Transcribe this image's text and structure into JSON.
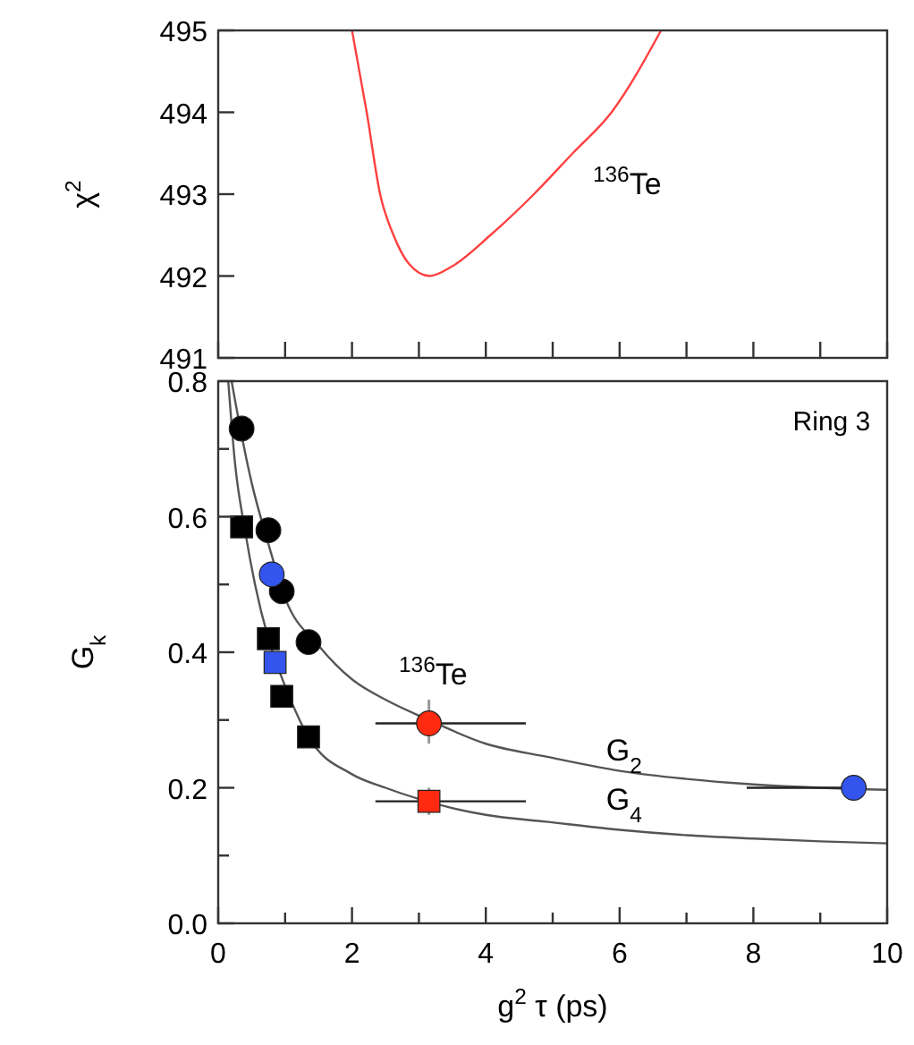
{
  "chart_data": [
    {
      "type": "line",
      "ylabel": "χ$^{2}$",
      "xlim": [
        0,
        10
      ],
      "ylim": [
        491,
        495
      ],
      "xticks": [
        {
          "value": 0,
          "label": null
        },
        {
          "value": 1,
          "label": null
        },
        {
          "value": 2,
          "label": null
        },
        {
          "value": 3,
          "label": null
        },
        {
          "value": 4,
          "label": null
        },
        {
          "value": 5,
          "label": null
        },
        {
          "value": 6,
          "label": null
        },
        {
          "value": 7,
          "label": null
        },
        {
          "value": 8,
          "label": null
        },
        {
          "value": 9,
          "label": null
        },
        {
          "value": 10,
          "label": null
        }
      ],
      "yticks": [
        491,
        492,
        493,
        494,
        495
      ],
      "tick_labels": "y",
      "grid": false,
      "annotations": [
        "$^{136}$Te"
      ],
      "series": [
        {
          "color": "#ff4040",
          "x": [
            2.0,
            2.22,
            2.42,
            2.62,
            2.85,
            3.16,
            3.5,
            4.07,
            4.72,
            5.3,
            5.88,
            6.62
          ],
          "values": [
            495,
            494,
            493,
            492.5,
            492.15,
            492,
            492.12,
            492.5,
            493,
            493.5,
            494,
            495
          ]
        }
      ]
    },
    {
      "type": "scatter",
      "ylabel": "G$_{k}$",
      "xlabel": "g$^{2}$ τ (ps)",
      "xlim": [
        0,
        10
      ],
      "ylim": [
        0,
        0.8
      ],
      "xticks": [
        0,
        {
          "value": 1,
          "label": null
        },
        2,
        {
          "value": 3,
          "label": null
        },
        4,
        {
          "value": 5,
          "label": null
        },
        6,
        {
          "value": 7,
          "label": null
        },
        8,
        {
          "value": 9,
          "label": null
        },
        {
          "value": 10,
          "label": "10"
        }
      ],
      "yticks": [
        "0.0",
        {
          "value": 0.1,
          "label": null
        },
        {
          "value": 0.2,
          "label": "0.2"
        },
        {
          "value": 0.3,
          "label": null
        },
        {
          "value": 0.4,
          "label": "0.4"
        },
        {
          "value": 0.5,
          "label": null
        },
        {
          "value": 0.6,
          "label": "0.6"
        },
        {
          "value": 0.7,
          "label": null
        },
        {
          "value": 0.8,
          "label": "0.8"
        }
      ],
      "grid": false,
      "annotations": [
        "Ring 3",
        "$^{136}$Te",
        "G$_{2}$",
        "G$_{4}$"
      ],
      "series": [
        {
          "type": "line",
          "color": "#555555",
          "x": [
            0.2,
            0.35,
            0.5,
            0.75,
            1,
            1.5,
            2,
            2.5,
            3.15,
            4,
            4.9,
            6,
            7,
            8,
            9,
            10
          ],
          "values": [
            0.8,
            0.72,
            0.65,
            0.56,
            0.48,
            0.41,
            0.36,
            0.33,
            0.3,
            0.265,
            0.246,
            0.225,
            0.213,
            0.205,
            0.2,
            0.197
          ]
        },
        {
          "type": "line",
          "color": "#555555",
          "x": [
            0.15,
            0.25,
            0.4,
            0.55,
            0.75,
            1,
            1.35,
            2,
            2.5,
            4,
            4.9,
            6,
            7,
            8,
            9,
            10
          ],
          "values": [
            0.8,
            0.68,
            0.58,
            0.5,
            0.42,
            0.35,
            0.275,
            0.22,
            0.2,
            0.16,
            0.15,
            0.138,
            0.13,
            0.125,
            0.121,
            0.118
          ]
        },
        {
          "marker": "circle",
          "color": "#000000",
          "x": [
            0.35,
            0.75,
            0.95,
            1.35
          ],
          "values": [
            0.73,
            0.58,
            0.49,
            0.415
          ]
        },
        {
          "marker": "square",
          "color": "#000000",
          "x": [
            0.35,
            0.75,
            0.95,
            1.35
          ],
          "values": [
            0.585,
            0.42,
            0.335,
            0.275
          ]
        },
        {
          "marker": "circle",
          "color": "#3355ee",
          "x": [
            0.8,
            9.5
          ],
          "values": [
            0.515,
            0.2
          ],
          "xerrors": [
            null,
            [
              7.9,
              9.5
            ]
          ]
        },
        {
          "marker": "square",
          "color": "#3355ee",
          "x": [
            0.85
          ],
          "values": [
            0.385
          ]
        },
        {
          "marker": "circle",
          "color": "#ff2a10",
          "x": [
            3.15
          ],
          "values": [
            0.295
          ],
          "errors": [
            [
              0.265,
              0.33
            ]
          ],
          "xerrors": [
            [
              2.35,
              4.6
            ]
          ]
        },
        {
          "marker": "square",
          "color": "#ff2a10",
          "x": [
            3.15
          ],
          "values": [
            0.18
          ],
          "errors": [
            [
              0.16,
              0.2
            ]
          ],
          "xerrors": [
            [
              2.35,
              4.6
            ]
          ]
        }
      ]
    }
  ]
}
